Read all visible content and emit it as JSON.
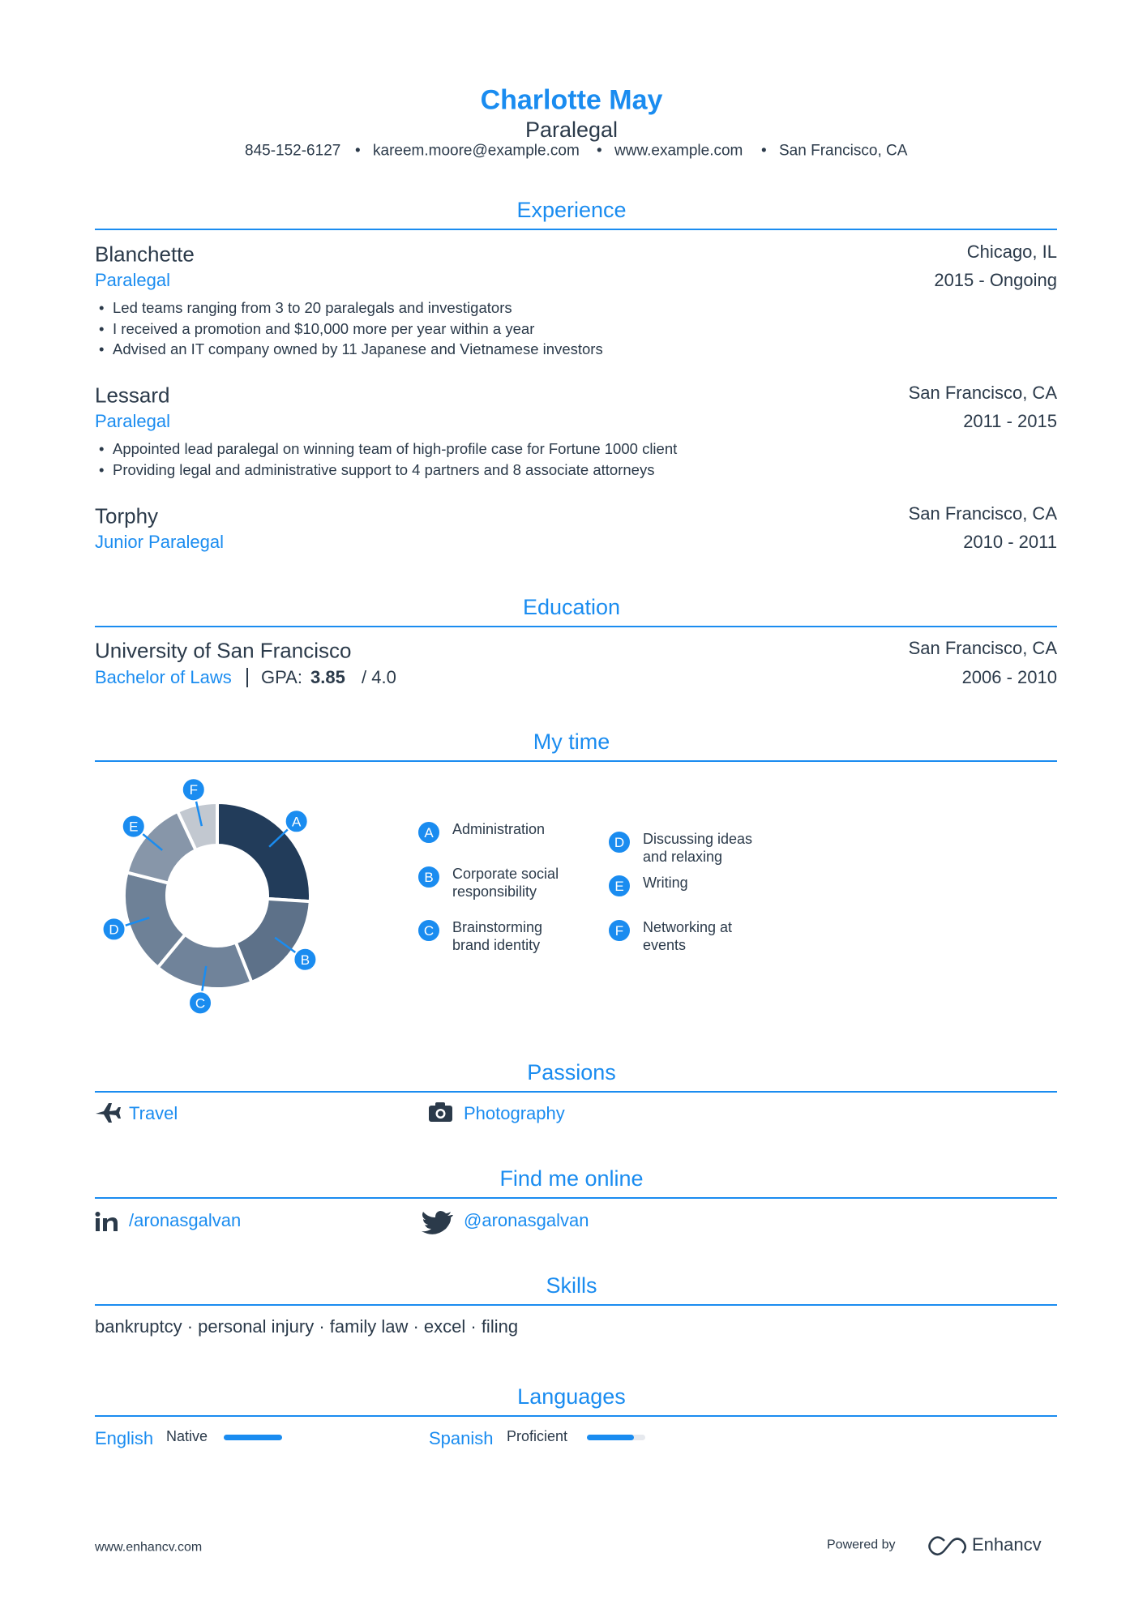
{
  "header": {
    "name": "Charlotte May",
    "title": "Paralegal",
    "contacts": [
      "845-152-6127",
      "kareem.moore@example.com",
      "www.example.com",
      "San Francisco, CA"
    ]
  },
  "experience": {
    "title": "Experience",
    "items": [
      {
        "company": "Blanchette",
        "role": "Paralegal",
        "location": "Chicago, IL",
        "dates": "2015 - Ongoing",
        "bullets": [
          "Led teams ranging from 3 to 20 paralegals and investigators",
          "I received a promotion and $10,000 more per year within a year",
          "Advised an IT company owned by 11 Japanese and Vietnamese investors"
        ]
      },
      {
        "company": "Lessard",
        "role": "Paralegal",
        "location": "San Francisco, CA",
        "dates": "2011 - 2015",
        "bullets": [
          "Appointed lead paralegal on winning team of high-profile case for Fortune 1000 client",
          "Providing legal and administrative support to 4 partners and 8 associate attorneys"
        ]
      },
      {
        "company": "Torphy",
        "role": "Junior Paralegal",
        "location": "San Francisco, CA",
        "dates": "2010 - 2011",
        "bullets": []
      }
    ]
  },
  "education": {
    "title": "Education",
    "items": [
      {
        "school": "University of San Francisco",
        "degree": "Bachelor of Laws",
        "gpa_label": "GPA:",
        "gpa": "3.85",
        "gpa_max": "/ 4.0",
        "location": "San Francisco, CA",
        "dates": "2006 - 2010"
      }
    ]
  },
  "my_time": {
    "title": "My time",
    "chart": {
      "type": "pie",
      "categories": [
        "A",
        "B",
        "C",
        "D",
        "E",
        "F"
      ],
      "labels": [
        "Administration",
        "Corporate social responsibility",
        "Brainstorming brand identity",
        "Discussing ideas and relaxing",
        "Writing",
        "Networking at events"
      ],
      "values": [
        26,
        18,
        17,
        18,
        14,
        7
      ],
      "colors": [
        "#223c5a",
        "#5d7189",
        "#70839a",
        "#6e8197",
        "#8796a9",
        "#c2c8d0"
      ]
    }
  },
  "passions": {
    "title": "Passions",
    "items": [
      "Travel",
      "Photography"
    ]
  },
  "online": {
    "title": "Find me online",
    "items": [
      "/aronasgalvan",
      "@aronasgalvan"
    ]
  },
  "skills": {
    "title": "Skills",
    "text": "bankruptcy · personal injury · family law · excel · filing"
  },
  "languages": {
    "title": "Languages",
    "range": [
      0,
      5
    ],
    "items": [
      {
        "name": "English",
        "level_label": "Native",
        "level": 5
      },
      {
        "name": "Spanish",
        "level_label": "Proficient",
        "level": 4
      }
    ]
  },
  "footer": {
    "site": "www.enhancv.com",
    "powered": "Powered by",
    "brand": "Enhancv"
  }
}
